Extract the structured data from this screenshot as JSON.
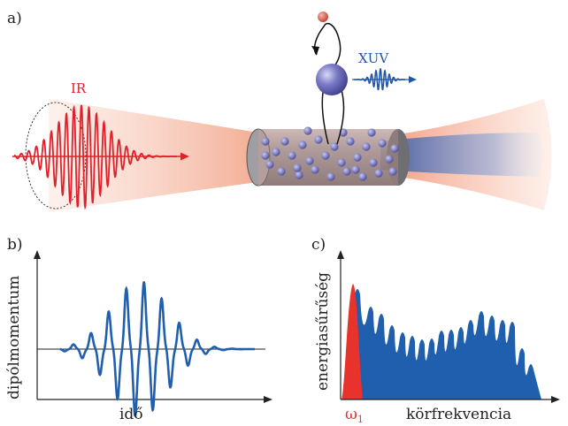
{
  "panel_a": {
    "label": "a)",
    "ir_label": "IR",
    "xuv_label": "XUV"
  },
  "panel_b": {
    "label": "b)",
    "ylabel": "dipólmomentum",
    "xlabel": "idő"
  },
  "panel_c": {
    "label": "c)",
    "ylabel": "energiasűrűség",
    "xlabel": "körfrekvencia",
    "omega_label": "ω",
    "omega_sub": "1"
  },
  "colors": {
    "ir_red": "#e0202a",
    "xuv_blue": "#2356a8",
    "spectrum_blue": "#1f5fae",
    "fundamental_red": "#e8322c",
    "atom_purple": "#6a6bc0",
    "electron_red": "#d9533c",
    "cell_gray": "#8a8a8f"
  },
  "icons": [
    "atom-sphere-icon",
    "electron-icon",
    "arrow-icon"
  ]
}
